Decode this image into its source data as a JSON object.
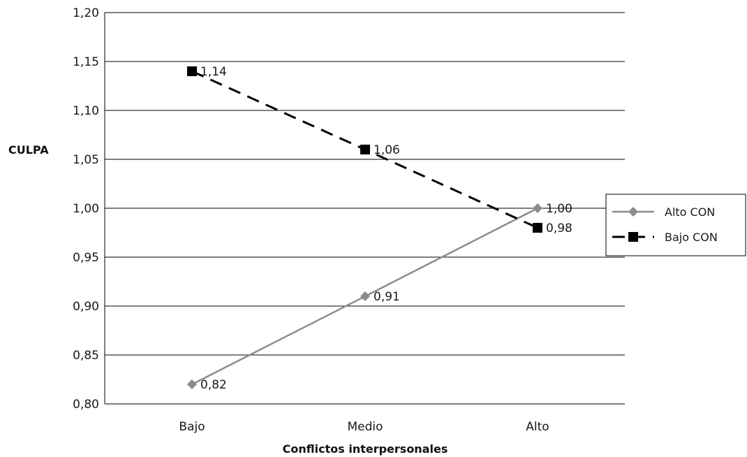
{
  "chart_data": {
    "type": "line",
    "title": "",
    "xlabel": "Conflictos interpersonales",
    "ylabel": "CULPA",
    "categories": [
      "Bajo",
      "Medio",
      "Alto"
    ],
    "ylim": [
      0.8,
      1.2
    ],
    "yticks": [
      "0,80",
      "0,85",
      "0,90",
      "0,95",
      "1,00",
      "1,05",
      "1,10",
      "1,15",
      "1,20"
    ],
    "grid": true,
    "legend_position": "right",
    "series": [
      {
        "name": "Alto CON",
        "values": [
          0.82,
          0.91,
          1.0
        ],
        "labels": [
          "0,82",
          "0,91",
          "1,00"
        ],
        "color": "#8c8c8c",
        "line_style": "solid",
        "marker": "diamond"
      },
      {
        "name": "Bajo CON",
        "values": [
          1.14,
          1.06,
          0.98
        ],
        "labels": [
          "1,14",
          "1,06",
          "0,98"
        ],
        "color": "#000000",
        "line_style": "dashed",
        "marker": "square"
      }
    ]
  }
}
